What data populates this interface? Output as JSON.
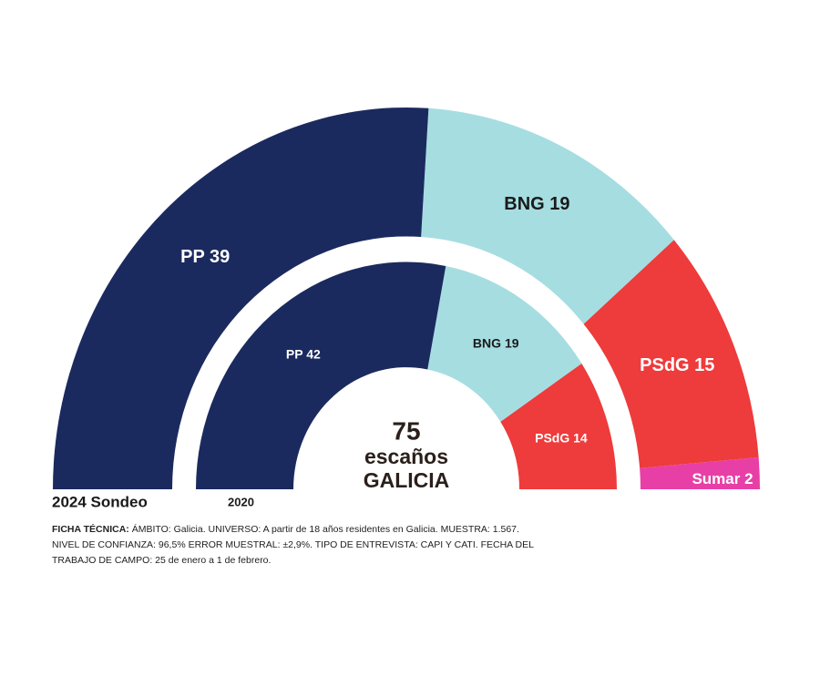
{
  "chart_data": {
    "type": "parliament",
    "total_seats": 75,
    "center_lines": [
      "escaños",
      "GALICIA"
    ],
    "series": [
      {
        "name": "2024 Sondeo",
        "categories": [
          "PP",
          "BNG",
          "PSdG",
          "Sumar"
        ],
        "values": [
          39,
          19,
          15,
          2
        ],
        "colors": [
          "#1b2a5e",
          "#a6dde1",
          "#ee3b3b",
          "#e83fa6"
        ]
      },
      {
        "name": "2020",
        "categories": [
          "PP",
          "BNG",
          "PSdG"
        ],
        "values": [
          42,
          19,
          14
        ],
        "colors": [
          "#1b2a5e",
          "#a6dde1",
          "#ee3b3b"
        ]
      }
    ],
    "note_label": "FICHA TÉCNICA:",
    "note_lines": [
      "ÁMBITO: Galicia. UNIVERSO: A partir de 18 años residentes en Galicia. MUESTRA: 1.567.",
      "NIVEL DE CONFIANZA: 96,5% ERROR MUESTRAL: ±2,9%. TIPO DE ENTREVISTA: CAPI Y CATI. FECHA DEL",
      "TRABAJO DE CAMPO: 25 de enero a 1 de febrero."
    ]
  }
}
